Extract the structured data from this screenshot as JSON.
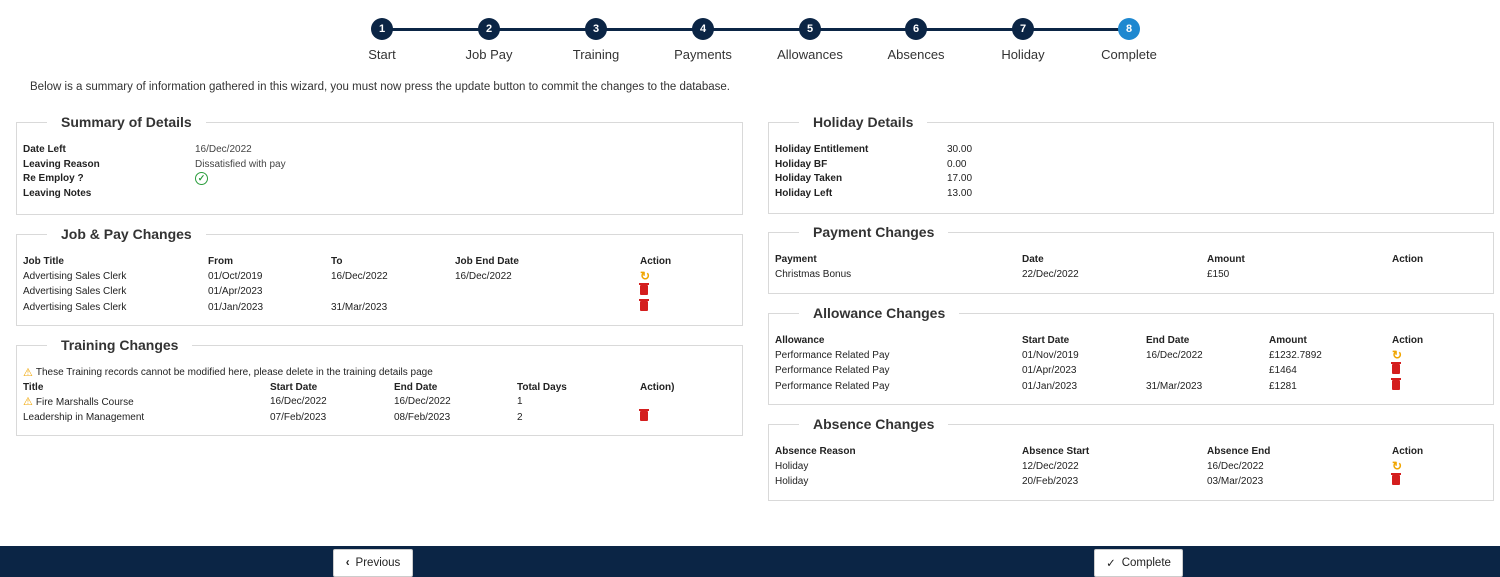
{
  "stepper": {
    "steps": [
      {
        "num": "1",
        "label": "Start"
      },
      {
        "num": "2",
        "label": "Job Pay"
      },
      {
        "num": "3",
        "label": "Training"
      },
      {
        "num": "4",
        "label": "Payments"
      },
      {
        "num": "5",
        "label": "Allowances"
      },
      {
        "num": "6",
        "label": "Absences"
      },
      {
        "num": "7",
        "label": "Holiday"
      },
      {
        "num": "8",
        "label": "Complete"
      }
    ],
    "active_step": 8
  },
  "intro": "Below is a summary of information gathered in this wizard, you must now press the update button to commit the changes to the database.",
  "summary": {
    "title": "Summary of Details",
    "date_left_label": "Date Left",
    "date_left": "16/Dec/2022",
    "leaving_reason_label": "Leaving Reason",
    "leaving_reason": "Dissatisfied with pay",
    "re_employ_label": "Re Employ ?",
    "leaving_notes_label": "Leaving Notes"
  },
  "job_pay": {
    "title": "Job & Pay Changes",
    "headers": [
      "Job Title",
      "From",
      "To",
      "Job End Date",
      "Action"
    ],
    "rows": [
      {
        "job_title": "Advertising Sales Clerk",
        "from": "01/Oct/2019",
        "to": "16/Dec/2022",
        "end": "16/Dec/2022",
        "action": "refresh-icon"
      },
      {
        "job_title": "Advertising Sales Clerk",
        "from": "01/Apr/2023",
        "to": "",
        "end": "",
        "action": "trash-icon"
      },
      {
        "job_title": "Advertising Sales Clerk",
        "from": "01/Jan/2023",
        "to": "31/Mar/2023",
        "end": "",
        "action": "trash-icon"
      }
    ]
  },
  "training": {
    "title": "Training Changes",
    "warning": "These Training records cannot be modified here, please delete in the training details page",
    "headers": [
      "Title",
      "Start Date",
      "End Date",
      "Total Days",
      "Action)"
    ],
    "rows": [
      {
        "title": "Fire Marshalls Course",
        "start": "16/Dec/2022",
        "end": "16/Dec/2022",
        "days": "1",
        "warn": true,
        "action": ""
      },
      {
        "title": "Leadership in Management",
        "start": "07/Feb/2023",
        "end": "08/Feb/2023",
        "days": "2",
        "warn": false,
        "action": "trash-icon"
      }
    ]
  },
  "holiday": {
    "title": "Holiday Details",
    "entitlement_label": "Holiday Entitlement",
    "entitlement": "30.00",
    "bf_label": "Holiday BF",
    "bf": "0.00",
    "taken_label": "Holiday Taken",
    "taken": "17.00",
    "left_label": "Holiday Left",
    "left": "13.00"
  },
  "payments": {
    "title": "Payment Changes",
    "headers": [
      "Payment",
      "Date",
      "Amount",
      "Action"
    ],
    "rows": [
      {
        "payment": "Christmas Bonus",
        "date": "22/Dec/2022",
        "amount": "£150"
      }
    ]
  },
  "allowances": {
    "title": "Allowance Changes",
    "headers": [
      "Allowance",
      "Start Date",
      "End Date",
      "Amount",
      "Action"
    ],
    "rows": [
      {
        "allowance": "Performance Related Pay",
        "start": "01/Nov/2019",
        "end": "16/Dec/2022",
        "amount": "£1232.7892",
        "action": "refresh-icon"
      },
      {
        "allowance": "Performance Related Pay",
        "start": "01/Apr/2023",
        "end": "",
        "amount": "£1464",
        "action": "trash-icon"
      },
      {
        "allowance": "Performance Related Pay",
        "start": "01/Jan/2023",
        "end": "31/Mar/2023",
        "amount": "£1281",
        "action": "trash-icon"
      }
    ]
  },
  "absences": {
    "title": "Absence Changes",
    "headers": [
      "Absence Reason",
      "Absence Start",
      "Absence End",
      "Action"
    ],
    "rows": [
      {
        "reason": "Holiday",
        "start": "12/Dec/2022",
        "end": "16/Dec/2022",
        "action": "refresh-icon"
      },
      {
        "reason": "Holiday",
        "start": "20/Feb/2023",
        "end": "03/Mar/2023",
        "action": "trash-icon"
      }
    ]
  },
  "footer": {
    "previous_label": "Previous",
    "complete_label": "Complete"
  },
  "colors": {
    "navy": "#0b2545",
    "active_step": "#1e88d0",
    "refresh": "#f0a500",
    "trash": "#d41e1e",
    "check": "#2a9d3c"
  }
}
